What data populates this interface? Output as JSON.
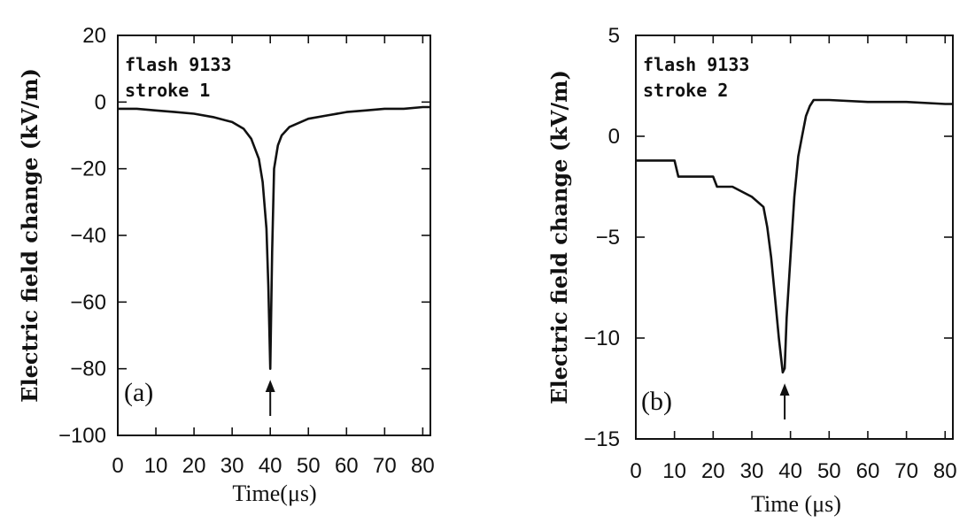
{
  "chart_data": [
    {
      "type": "line",
      "panel": "(a)",
      "annotation_line1": "flash 9133",
      "annotation_line2": "stroke 1",
      "xlabel": "Time(μs)",
      "ylabel": "Electric field change (kV/m)",
      "xlim": [
        0,
        82
      ],
      "ylim": [
        -100,
        20
      ],
      "xticks": [
        0,
        10,
        20,
        30,
        40,
        50,
        60,
        70,
        80
      ],
      "yticks": [
        20,
        0,
        -20,
        -40,
        -60,
        -80,
        -100
      ],
      "ytick_labels": [
        "20",
        "0",
        "−20",
        "−40",
        "−60",
        "−80",
        "−100"
      ],
      "arrow_at_x": 40,
      "grid": false,
      "series": [
        {
          "x": [
            0,
            5,
            10,
            15,
            20,
            25,
            30,
            33,
            35,
            37,
            38,
            39,
            39.5,
            40,
            40.5,
            41,
            42,
            43,
            45,
            48,
            50,
            55,
            60,
            65,
            70,
            75,
            80,
            82
          ],
          "y": [
            -2,
            -2,
            -2.5,
            -3,
            -3.5,
            -4.5,
            -6,
            -8,
            -11,
            -17,
            -24,
            -38,
            -55,
            -80,
            -45,
            -20,
            -13,
            -10,
            -7.5,
            -6,
            -5,
            -4,
            -3,
            -2.5,
            -2,
            -2,
            -1.5,
            -1.5
          ]
        }
      ]
    },
    {
      "type": "line",
      "panel": "(b)",
      "annotation_line1": "flash 9133",
      "annotation_line2": "stroke 2",
      "xlabel": "Time (μs)",
      "ylabel": "Electric field change (kV/m)",
      "xlim": [
        0,
        82
      ],
      "ylim": [
        -15,
        5
      ],
      "xticks": [
        0,
        10,
        20,
        30,
        40,
        50,
        60,
        70,
        80
      ],
      "yticks": [
        5,
        0,
        -5,
        -10,
        -15
      ],
      "ytick_labels": [
        "5",
        "0",
        "−5",
        "−10",
        "−15"
      ],
      "arrow_at_x": 38.5,
      "grid": false,
      "series": [
        {
          "x": [
            0,
            10,
            11,
            20,
            21,
            25,
            30,
            33,
            34,
            35,
            36,
            37,
            38,
            38.5,
            39,
            40,
            41,
            42,
            43,
            44,
            45,
            46,
            50,
            60,
            70,
            80,
            82
          ],
          "y": [
            -1.2,
            -1.2,
            -2,
            -2,
            -2.5,
            -2.5,
            -3,
            -3.5,
            -4.5,
            -6,
            -8,
            -10,
            -11.7,
            -11.5,
            -9,
            -6,
            -3,
            -1,
            0,
            1,
            1.5,
            1.8,
            1.8,
            1.7,
            1.7,
            1.6,
            1.6
          ]
        }
      ]
    }
  ]
}
